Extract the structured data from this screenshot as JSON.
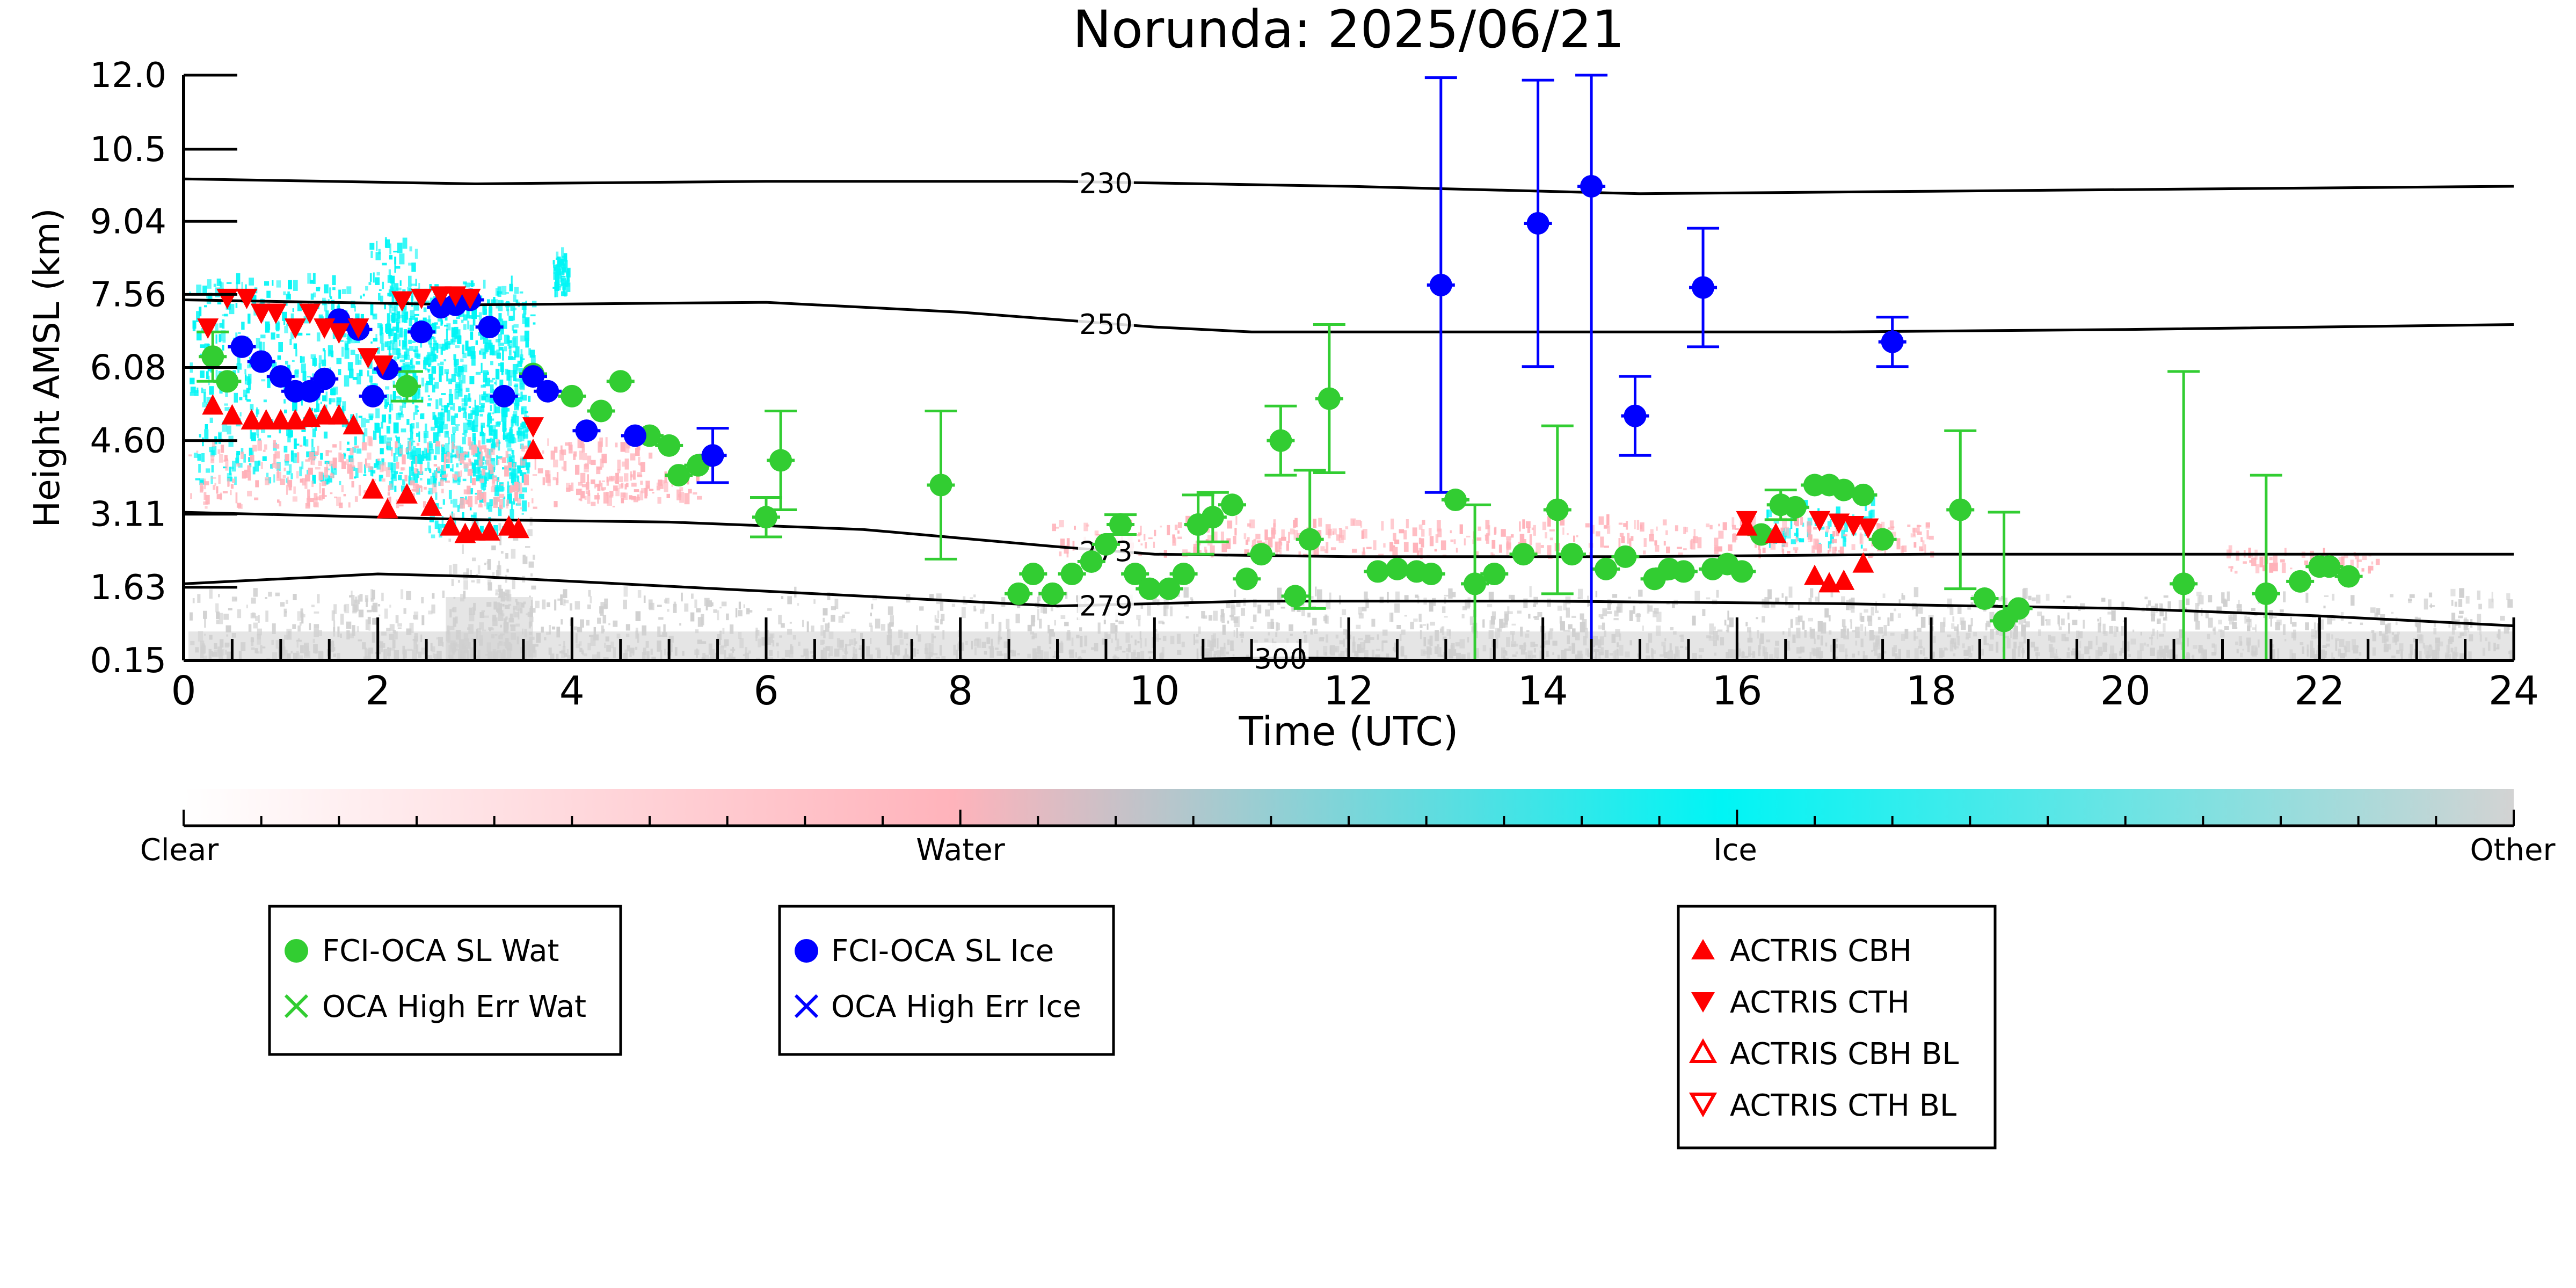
{
  "chart_data": {
    "type": "scatter",
    "title": "Norunda: 2025/06/21",
    "xlabel": "Time (UTC)",
    "ylabel": "Height AMSL (km)",
    "xlim": [
      0,
      24
    ],
    "ylim": [
      0.15,
      12.0
    ],
    "x_ticks": [
      "0",
      "2",
      "4",
      "6",
      "8",
      "10",
      "12",
      "14",
      "16",
      "18",
      "20",
      "22",
      "24"
    ],
    "y_ticks": [
      "0.15",
      "1.63",
      "3.11",
      "4.60",
      "6.08",
      "7.56",
      "9.04",
      "10.5",
      "12.0"
    ],
    "y_tick_values": [
      0.15,
      1.63,
      3.11,
      4.6,
      6.08,
      7.56,
      9.04,
      10.5,
      12.0
    ],
    "grid": false,
    "temperature_contours": [
      {
        "label": "230",
        "label_x": 9.5,
        "x": [
          0,
          3,
          6,
          9,
          12,
          15,
          18,
          21,
          24
        ],
        "y": [
          9.9,
          9.8,
          9.85,
          9.85,
          9.75,
          9.6,
          9.65,
          9.7,
          9.75
        ]
      },
      {
        "label": "250",
        "label_x": 9.5,
        "x": [
          0,
          3,
          6,
          8,
          10,
          11,
          14,
          17,
          20,
          24
        ],
        "y": [
          7.45,
          7.35,
          7.4,
          7.2,
          6.9,
          6.8,
          6.8,
          6.8,
          6.85,
          6.95
        ]
      },
      {
        "label": "273",
        "label_x": 9.5,
        "x": [
          0,
          3,
          5,
          7,
          9,
          10,
          12,
          15,
          18,
          21,
          24
        ],
        "y": [
          3.15,
          3.0,
          2.95,
          2.8,
          2.45,
          2.3,
          2.25,
          2.25,
          2.3,
          2.3,
          2.3
        ]
      },
      {
        "label": "279",
        "label_x": 9.5,
        "x": [
          0,
          2,
          3,
          5,
          7,
          9,
          11,
          14,
          17,
          20,
          22,
          24
        ],
        "y": [
          1.7,
          1.9,
          1.85,
          1.65,
          1.45,
          1.25,
          1.35,
          1.35,
          1.3,
          1.2,
          1.05,
          0.85
        ]
      },
      {
        "label": "300",
        "label_x": 11.3,
        "x": [
          10.5,
          11.3,
          12.5
        ],
        "y": [
          0.18,
          0.2,
          0.18
        ]
      }
    ],
    "series": [
      {
        "name": "FCI-OCA SL Wat",
        "color": "#32cd32",
        "marker": "circle",
        "points": [
          [
            0.3,
            6.3,
            0.5
          ],
          [
            0.45,
            5.8,
            0
          ],
          [
            2.3,
            5.7,
            0.3
          ],
          [
            3.6,
            5.95,
            0
          ],
          [
            4.0,
            5.5,
            0
          ],
          [
            4.3,
            5.2,
            0
          ],
          [
            4.5,
            5.8,
            0
          ],
          [
            4.8,
            4.7,
            0
          ],
          [
            5.0,
            4.5,
            0
          ],
          [
            5.1,
            3.9,
            0
          ],
          [
            5.3,
            4.1,
            0
          ],
          [
            6.0,
            3.05,
            0.4
          ],
          [
            6.15,
            4.2,
            1.0
          ],
          [
            7.8,
            3.7,
            1.5
          ],
          [
            8.6,
            1.5,
            0
          ],
          [
            8.75,
            1.9,
            0
          ],
          [
            8.95,
            1.5,
            0
          ],
          [
            9.15,
            1.9,
            0
          ],
          [
            9.35,
            2.15,
            0
          ],
          [
            9.5,
            2.5,
            0
          ],
          [
            9.65,
            2.9,
            0.2
          ],
          [
            9.8,
            1.9,
            0
          ],
          [
            9.95,
            1.6,
            0
          ],
          [
            10.15,
            1.6,
            0
          ],
          [
            10.3,
            1.9,
            0
          ],
          [
            10.45,
            2.9,
            0.6
          ],
          [
            10.6,
            3.05,
            0.5
          ],
          [
            10.8,
            3.3,
            0
          ],
          [
            10.95,
            1.8,
            0
          ],
          [
            11.1,
            2.3,
            0
          ],
          [
            11.3,
            4.6,
            0.7
          ],
          [
            11.45,
            1.45,
            0
          ],
          [
            11.6,
            2.6,
            1.4
          ],
          [
            11.8,
            5.45,
            1.5
          ],
          [
            12.3,
            1.95,
            0
          ],
          [
            12.5,
            2.0,
            0
          ],
          [
            12.7,
            1.95,
            0
          ],
          [
            12.85,
            1.9,
            0
          ],
          [
            13.1,
            3.4,
            0
          ],
          [
            13.3,
            1.7,
            1.6
          ],
          [
            13.5,
            1.9,
            0
          ],
          [
            13.8,
            2.3,
            0
          ],
          [
            14.15,
            3.2,
            1.7
          ],
          [
            14.3,
            2.3,
            0
          ],
          [
            14.65,
            2.0,
            0
          ],
          [
            14.85,
            2.25,
            0
          ],
          [
            15.15,
            1.8,
            0
          ],
          [
            15.3,
            2.0,
            0
          ],
          [
            15.45,
            1.95,
            0
          ],
          [
            15.75,
            2.0,
            0
          ],
          [
            15.9,
            2.1,
            0
          ],
          [
            16.05,
            1.95,
            0
          ],
          [
            16.25,
            2.7,
            0
          ],
          [
            16.45,
            3.3,
            0.3
          ],
          [
            16.6,
            3.25,
            0
          ],
          [
            16.8,
            3.7,
            0
          ],
          [
            16.95,
            3.7,
            0
          ],
          [
            17.1,
            3.6,
            0
          ],
          [
            17.3,
            3.5,
            0
          ],
          [
            17.5,
            2.6,
            0
          ],
          [
            18.3,
            3.2,
            1.6
          ],
          [
            18.55,
            1.4,
            0
          ],
          [
            18.75,
            0.95,
            2.2
          ],
          [
            18.9,
            1.2,
            0
          ],
          [
            20.6,
            1.7,
            4.3
          ],
          [
            21.45,
            1.5,
            2.4
          ],
          [
            21.8,
            1.75,
            0
          ],
          [
            22.0,
            2.05,
            0
          ],
          [
            22.1,
            2.05,
            0
          ],
          [
            22.3,
            1.85,
            0
          ]
        ]
      },
      {
        "name": "FCI-OCA SL Ice",
        "color": "#0000ff",
        "marker": "circle",
        "points": [
          [
            0.6,
            6.5,
            0
          ],
          [
            0.8,
            6.2,
            0
          ],
          [
            1.0,
            5.9,
            0
          ],
          [
            1.15,
            5.6,
            0
          ],
          [
            1.3,
            5.6,
            0
          ],
          [
            1.45,
            5.85,
            0
          ],
          [
            1.6,
            7.05,
            0
          ],
          [
            1.8,
            6.85,
            0
          ],
          [
            1.95,
            5.5,
            0
          ],
          [
            2.1,
            6.05,
            0
          ],
          [
            2.45,
            6.8,
            0
          ],
          [
            2.65,
            7.3,
            0
          ],
          [
            2.8,
            7.35,
            0
          ],
          [
            2.95,
            7.45,
            0
          ],
          [
            3.15,
            6.9,
            0
          ],
          [
            3.3,
            5.5,
            0
          ],
          [
            3.6,
            5.9,
            0
          ],
          [
            3.75,
            5.6,
            0
          ],
          [
            4.15,
            4.8,
            0
          ],
          [
            4.65,
            4.7,
            0
          ],
          [
            5.45,
            4.3,
            0.55
          ],
          [
            12.95,
            7.75,
            4.2
          ],
          [
            13.95,
            9.0,
            2.9
          ],
          [
            14.5,
            9.75,
            9.6
          ],
          [
            14.95,
            5.1,
            0.8
          ],
          [
            15.65,
            7.7,
            1.2
          ],
          [
            17.6,
            6.6,
            0.5
          ]
        ]
      },
      {
        "name": "ACTRIS CBH",
        "color": "#ff0000",
        "marker": "triangle-up",
        "points": [
          [
            0.3,
            5.3
          ],
          [
            0.5,
            5.1
          ],
          [
            0.7,
            5.0
          ],
          [
            0.85,
            5.0
          ],
          [
            1.0,
            5.0
          ],
          [
            1.15,
            5.0
          ],
          [
            1.3,
            5.05
          ],
          [
            1.45,
            5.1
          ],
          [
            1.6,
            5.1
          ],
          [
            1.75,
            4.9
          ],
          [
            1.95,
            3.6
          ],
          [
            2.1,
            3.2
          ],
          [
            2.3,
            3.5
          ],
          [
            2.55,
            3.25
          ],
          [
            2.75,
            2.85
          ],
          [
            2.9,
            2.7
          ],
          [
            3.0,
            2.75
          ],
          [
            3.15,
            2.75
          ],
          [
            3.35,
            2.85
          ],
          [
            3.45,
            2.8
          ],
          [
            3.6,
            4.4
          ],
          [
            16.1,
            2.85
          ],
          [
            16.4,
            2.7
          ],
          [
            16.8,
            1.85
          ],
          [
            16.95,
            1.7
          ],
          [
            17.1,
            1.75
          ],
          [
            17.3,
            2.1
          ]
        ]
      },
      {
        "name": "ACTRIS CTH",
        "color": "#ff0000",
        "marker": "triangle-down",
        "points": [
          [
            0.25,
            6.9
          ],
          [
            0.45,
            7.5
          ],
          [
            0.65,
            7.5
          ],
          [
            0.8,
            7.2
          ],
          [
            0.95,
            7.2
          ],
          [
            1.15,
            6.9
          ],
          [
            1.3,
            7.2
          ],
          [
            1.45,
            6.9
          ],
          [
            1.6,
            6.8
          ],
          [
            1.8,
            6.9
          ],
          [
            1.9,
            6.3
          ],
          [
            2.05,
            6.15
          ],
          [
            2.25,
            7.45
          ],
          [
            2.45,
            7.5
          ],
          [
            2.65,
            7.55
          ],
          [
            2.8,
            7.55
          ],
          [
            2.95,
            7.5
          ],
          [
            3.6,
            4.9
          ],
          [
            16.1,
            3.0
          ],
          [
            16.85,
            3.0
          ],
          [
            17.05,
            2.95
          ],
          [
            17.2,
            2.9
          ],
          [
            17.35,
            2.85
          ]
        ]
      },
      {
        "name": "OCA High Err Wat",
        "color": "#32cd32",
        "marker": "x",
        "points": []
      },
      {
        "name": "OCA High Err Ice",
        "color": "#0000ff",
        "marker": "x",
        "points": []
      },
      {
        "name": "ACTRIS CBH BL",
        "color": "#ff0000",
        "marker": "triangle-up-open",
        "points": []
      },
      {
        "name": "ACTRIS CTH BL",
        "color": "#ff0000",
        "marker": "triangle-down-open",
        "points": []
      }
    ],
    "background_classes": [
      {
        "class": "Ice",
        "color": "#00f5f5",
        "regions": [
          [
            0.05,
            3.6,
            3.7,
            7.8
          ],
          [
            1.9,
            2.4,
            5.8,
            8.6
          ],
          [
            2.1,
            3.5,
            3.5,
            7.6
          ],
          [
            2.5,
            3.5,
            2.6,
            5.0
          ],
          [
            16.3,
            17.4,
            2.4,
            3.3
          ],
          [
            3.8,
            3.95,
            7.5,
            8.3
          ]
        ]
      },
      {
        "class": "Water",
        "color": "#ffb0b8",
        "regions": [
          [
            0.05,
            4.8,
            3.2,
            4.5
          ],
          [
            4.0,
            5.3,
            3.3,
            3.8
          ],
          [
            8.9,
            18.0,
            2.2,
            2.9
          ],
          [
            21.0,
            22.6,
            1.9,
            2.3
          ]
        ]
      },
      {
        "class": "Other",
        "color": "#cfcfcf",
        "regions": [
          [
            0.05,
            24.0,
            0.15,
            1.45
          ],
          [
            2.7,
            3.6,
            0.15,
            3.0
          ]
        ]
      }
    ],
    "colorbar": {
      "labels": [
        "Clear",
        "Water",
        "Ice",
        "Other"
      ],
      "colors": [
        "#ffffff",
        "#ffb3bb",
        "#00f5f5",
        "#d3d3d3"
      ]
    },
    "legend_groups": [
      [
        "FCI-OCA SL Wat",
        "OCA High Err Wat"
      ],
      [
        "FCI-OCA SL Ice",
        "OCA High Err Ice"
      ],
      [
        "ACTRIS CBH",
        "ACTRIS CTH",
        "ACTRIS CBH BL",
        "ACTRIS CTH BL"
      ]
    ],
    "legend_placement": "below"
  }
}
